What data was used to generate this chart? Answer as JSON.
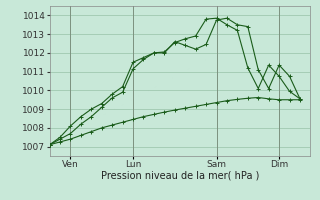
{
  "background_color": "#c8e8d8",
  "grid_color": "#a0c8b0",
  "line_color": "#1a5c1a",
  "xlim": [
    0,
    75
  ],
  "ylim": [
    1006.5,
    1014.5
  ],
  "yticks": [
    1007,
    1008,
    1009,
    1010,
    1011,
    1012,
    1013,
    1014
  ],
  "xtick_positions": [
    6,
    24,
    48,
    66
  ],
  "xtick_labels": [
    "Ven",
    "Lun",
    "Sam",
    "Dim"
  ],
  "xlabel": "Pression niveau de la mer( hPa )",
  "series1_x": [
    0,
    3,
    6,
    9,
    12,
    15,
    18,
    21,
    24,
    27,
    30,
    33,
    36,
    39,
    42,
    45,
    48,
    51,
    54,
    57,
    60,
    63,
    66,
    69,
    72
  ],
  "series1_y": [
    1007.1,
    1007.25,
    1007.4,
    1007.6,
    1007.8,
    1008.0,
    1008.15,
    1008.3,
    1008.45,
    1008.6,
    1008.72,
    1008.84,
    1008.95,
    1009.05,
    1009.15,
    1009.25,
    1009.35,
    1009.45,
    1009.52,
    1009.58,
    1009.62,
    1009.55,
    1009.5,
    1009.5,
    1009.5
  ],
  "series2_x": [
    0,
    3,
    6,
    9,
    12,
    15,
    18,
    21,
    24,
    27,
    30,
    33,
    36,
    39,
    42,
    45,
    48,
    51,
    54,
    57,
    60,
    63,
    66,
    69,
    72
  ],
  "series2_y": [
    1007.1,
    1007.4,
    1007.7,
    1008.2,
    1008.6,
    1009.1,
    1009.6,
    1009.9,
    1011.15,
    1011.65,
    1012.0,
    1012.05,
    1012.55,
    1012.75,
    1012.9,
    1013.8,
    1013.85,
    1013.5,
    1013.2,
    1011.2,
    1010.1,
    1011.35,
    1010.75,
    1009.95,
    1009.55
  ],
  "series3_x": [
    0,
    3,
    6,
    9,
    12,
    15,
    18,
    21,
    24,
    27,
    30,
    33,
    36,
    39,
    42,
    45,
    48,
    51,
    54,
    57,
    60,
    63,
    66,
    69,
    72
  ],
  "series3_y": [
    1007.1,
    1007.5,
    1008.1,
    1008.6,
    1009.0,
    1009.3,
    1009.8,
    1010.2,
    1011.5,
    1011.75,
    1012.0,
    1012.0,
    1012.6,
    1012.4,
    1012.2,
    1012.45,
    1013.75,
    1013.85,
    1013.5,
    1013.4,
    1011.1,
    1010.1,
    1011.35,
    1010.75,
    1009.55
  ]
}
